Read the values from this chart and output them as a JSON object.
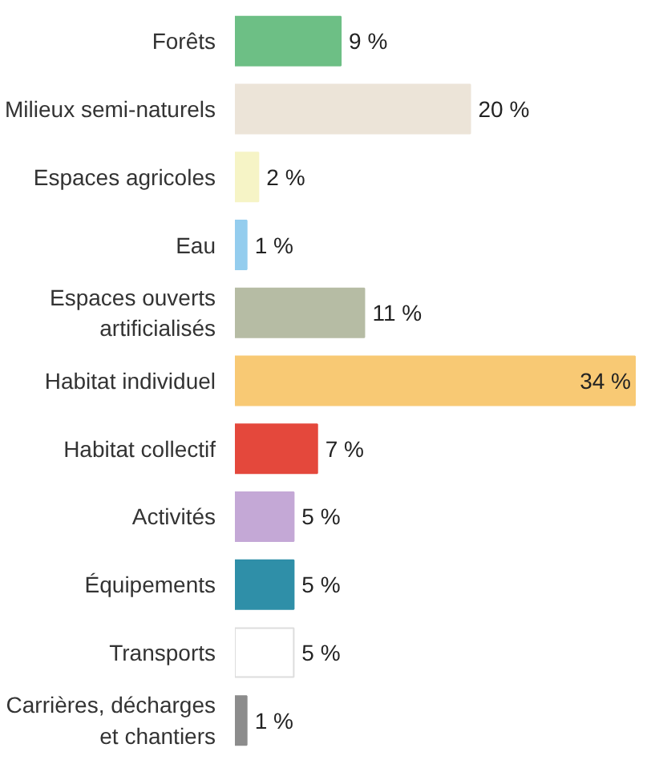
{
  "chart_data": {
    "type": "bar",
    "orientation": "horizontal",
    "categories": [
      "Forêts",
      "Milieux semi-naturels",
      "Espaces agricoles",
      "Eau",
      "Espaces ouverts\nartificialisés",
      "Habitat individuel",
      "Habitat collectif",
      "Activités",
      "Équipements",
      "Transports",
      "Carrières, décharges\net chantiers"
    ],
    "values": [
      9,
      20,
      2,
      1,
      11,
      34,
      7,
      5,
      5,
      5,
      1
    ],
    "value_labels": [
      "9 %",
      "20 %",
      "2 %",
      "1 %",
      "11 %",
      "34 %",
      "7 %",
      "5 %",
      "5 %",
      "5 %",
      "1 %"
    ],
    "colors": [
      "#6dbf85",
      "#ece4d8",
      "#f6f4c6",
      "#94cdee",
      "#b6bca4",
      "#f8c974",
      "#e4483c",
      "#c4a8d6",
      "#2f8fa8",
      "#ffffff",
      "#8c8c8c"
    ],
    "grid": false
  }
}
